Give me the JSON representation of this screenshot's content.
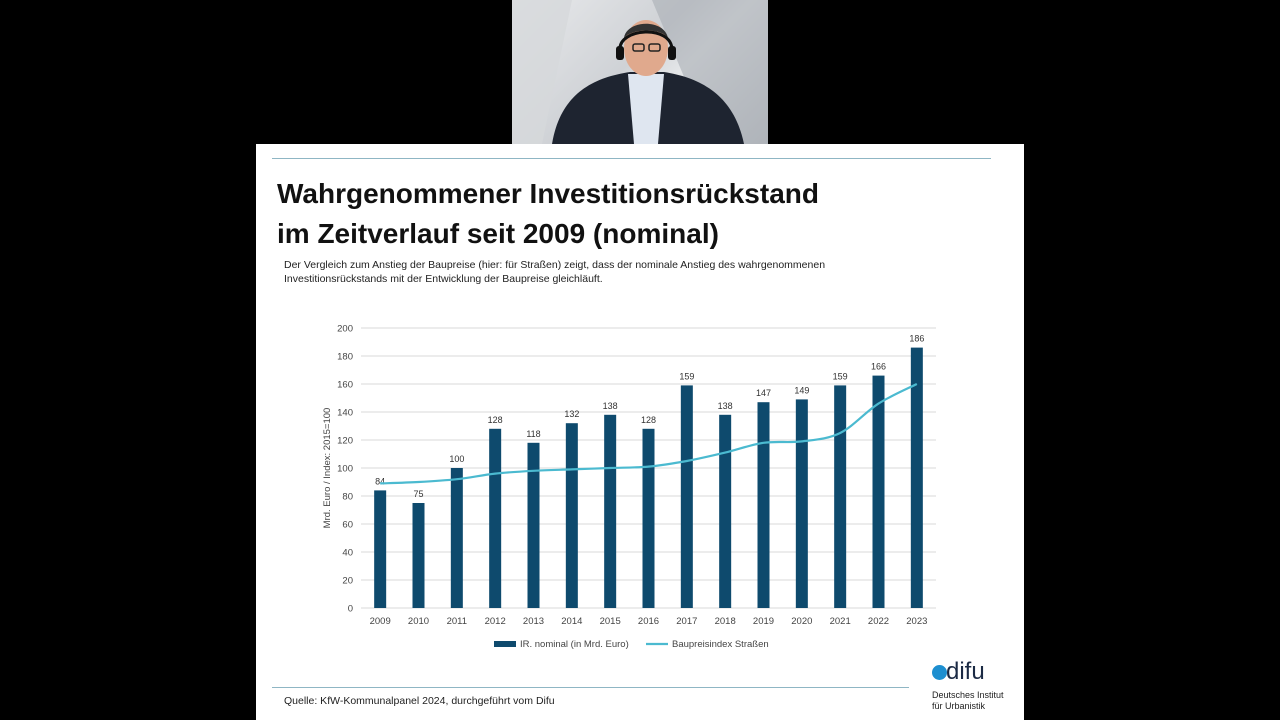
{
  "slide": {
    "title_line1": "Wahrgenommener Investitionsrückstand",
    "title_line2": "im Zeitverlauf seit 2009 (nominal)",
    "subtitle_line1": "Der Vergleich zum Anstieg der Baupreise (hier: für Straßen) zeigt, dass der nominale Anstieg des wahrgenommenen",
    "subtitle_line2": "Investitionsrückstands mit der Entwicklung der Baupreise gleichläuft.",
    "source": "Quelle: KfW-Kommunalpanel 2024, durchgeführt vom Difu",
    "logo_word": "difu",
    "logo_line1": "Deutsches Institut",
    "logo_line2": "für Urbanistik"
  },
  "colors": {
    "bar": "#0e4a6d",
    "line": "#4bbad0",
    "grid": "#d9d9d9",
    "accent_rule": "#8fb6c4"
  },
  "chart_data": {
    "type": "bar",
    "categories": [
      "2009",
      "2010",
      "2011",
      "2012",
      "2013",
      "2014",
      "2015",
      "2016",
      "2017",
      "2018",
      "2019",
      "2020",
      "2021",
      "2022",
      "2023"
    ],
    "series": [
      {
        "name": "IR. nominal (in Mrd. Euro)",
        "type": "bar",
        "values": [
          84,
          75,
          100,
          128,
          118,
          132,
          138,
          128,
          159,
          138,
          147,
          149,
          159,
          166,
          186
        ]
      },
      {
        "name": "Baupreisindex Straßen",
        "type": "line",
        "values": [
          89,
          90,
          92,
          96,
          98,
          99,
          100,
          101,
          105,
          111,
          118,
          119,
          125,
          146,
          160
        ]
      }
    ],
    "ylabel": "Mrd. Euro / Index: 2015=100",
    "ylim": [
      0,
      200
    ],
    "yticks": [
      0,
      20,
      40,
      60,
      80,
      100,
      120,
      140,
      160,
      180,
      200
    ],
    "grid": true,
    "legend": "bottom"
  }
}
